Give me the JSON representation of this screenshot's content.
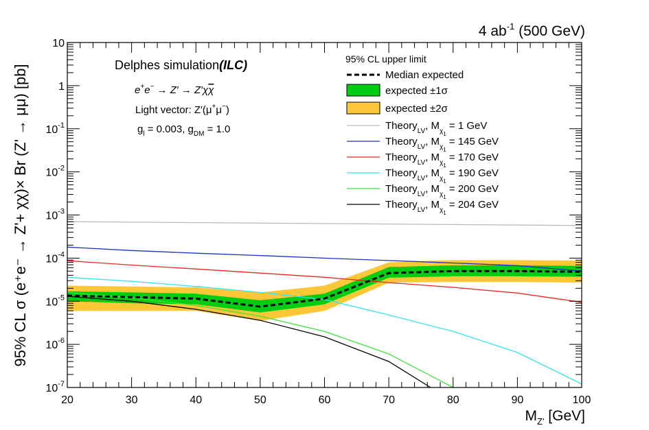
{
  "chart_data": {
    "type": "line",
    "corner_label": "4 ab",
    "corner_label_sup": "-1",
    "corner_label_tail": " (500 GeV)",
    "annotations": {
      "sim": "Delphes simulation",
      "sim_bold": "(ILC)",
      "process_a": "e",
      "process_b": "e",
      "process_c": " → Z′ → Z′χ",
      "process_d": "χ",
      "vector_a": "Light vector: Z′(μ",
      "vector_b": "μ",
      "vector_c": ")",
      "coupling_a": "g",
      "coupling_a_sub": "l",
      "coupling_b": " = 0.003, g",
      "coupling_b_sub": "DM",
      "coupling_c": " = 1.0"
    },
    "xlabel": "M",
    "xlabel_sub": "Z'",
    "xlabel_tail": " [GeV]",
    "ylabel": "95% CL σ (e⁺e⁻ → Z'+ χχ)× Br (Z' → μμ) [pb]",
    "xlim": [
      20,
      100
    ],
    "ylim": [
      1e-07,
      10
    ],
    "xscale": "linear",
    "yscale": "log",
    "x_ticks": [
      20,
      30,
      40,
      50,
      60,
      70,
      80,
      90,
      100
    ],
    "y_ticks": [
      {
        "base": "10",
        "exp": "-7"
      },
      {
        "base": "10",
        "exp": "-6"
      },
      {
        "base": "10",
        "exp": "-5"
      },
      {
        "base": "10",
        "exp": "-4"
      },
      {
        "base": "10",
        "exp": "-3"
      },
      {
        "base": "10",
        "exp": "-2"
      },
      {
        "base": "10",
        "exp": "-1"
      },
      {
        "base": "1",
        "exp": ""
      },
      {
        "base": "10",
        "exp": ""
      }
    ],
    "legend": {
      "title": "95% CL upper limit",
      "median": "Median expected",
      "band1": "expected ±1σ",
      "band2": "expected ±2σ",
      "theory_prefix": "Theory",
      "theory_sub": "LV",
      "theory_mid": ", M",
      "theory_msub": "χ",
      "theory_msubsub": "1"
    },
    "x": [
      20,
      30,
      40,
      50,
      60,
      70,
      80,
      90,
      100
    ],
    "expected": {
      "median": [
        1.35e-05,
        1.25e-05,
        1.15e-05,
        7.5e-06,
        1.15e-05,
        4.5e-05,
        5e-05,
        5e-05,
        4.8e-05
      ],
      "band1_low": [
        1e-05,
        9e-06,
        8.5e-06,
        5.5e-06,
        8.5e-06,
        3.5e-05,
        3.8e-05,
        3.8e-05,
        3.7e-05
      ],
      "band1_high": [
        1.7e-05,
        1.6e-05,
        1.5e-05,
        1.05e-05,
        1.5e-05,
        6.2e-05,
        6.8e-05,
        6.8e-05,
        6.6e-05
      ],
      "band2_low": [
        6e-06,
        6e-06,
        6e-06,
        3.5e-06,
        6e-06,
        2.7e-05,
        2.8e-05,
        2.8e-05,
        2.7e-05
      ],
      "band2_high": [
        2.3e-05,
        2.2e-05,
        2.1e-05,
        1.6e-05,
        2.3e-05,
        8e-05,
        9e-05,
        9e-05,
        8.8e-05
      ]
    },
    "series": [
      {
        "name": "1 GeV",
        "mass_label": " = 1 GeV",
        "color": "#bcbcb4",
        "x": [
          20,
          100
        ],
        "values": [
          0.0007,
          0.00057
        ]
      },
      {
        "name": "145 GeV",
        "mass_label": " = 145 GeV",
        "color": "#1a2fc7",
        "x": [
          20,
          30,
          40,
          50,
          60,
          70,
          80,
          90,
          100
        ],
        "values": [
          0.00018,
          0.00015,
          0.00013,
          0.000115,
          0.0001,
          8.8e-05,
          7.7e-05,
          6.7e-05,
          5e-05
        ]
      },
      {
        "name": "170 GeV",
        "mass_label": " = 170 GeV",
        "color": "#e8271f",
        "x": [
          20,
          30,
          40,
          50,
          60,
          70,
          80,
          90,
          100
        ],
        "values": [
          8.7e-05,
          6.9e-05,
          5.6e-05,
          4.5e-05,
          3.6e-05,
          2.7e-05,
          2.1e-05,
          1.55e-05,
          9.5e-06
        ]
      },
      {
        "name": "190 GeV",
        "mass_label": " = 190 GeV",
        "color": "#33e5ee",
        "x": [
          20,
          30,
          40,
          50,
          60,
          70,
          80,
          90,
          100
        ],
        "values": [
          3.6e-05,
          2.9e-05,
          2.2e-05,
          1.6e-05,
          1.1e-05,
          4.8e-06,
          2e-06,
          6.5e-07,
          1.2e-07
        ]
      },
      {
        "name": "200 GeV",
        "mass_label": " = 200 GeV",
        "color": "#3ee337",
        "x": [
          20,
          30,
          40,
          50,
          60,
          70,
          80
        ],
        "values": [
          1.6e-05,
          1.2e-05,
          8e-06,
          4.5e-06,
          2e-06,
          6e-07,
          1e-07
        ]
      },
      {
        "name": "204 GeV",
        "mass_label": " = 204 GeV",
        "color": "#000000",
        "x": [
          20,
          30,
          40,
          50,
          60,
          70,
          76.5
        ],
        "values": [
          1.3e-05,
          1e-05,
          6.5e-06,
          3.6e-06,
          1.5e-06,
          4e-07,
          1e-07
        ]
      }
    ]
  }
}
